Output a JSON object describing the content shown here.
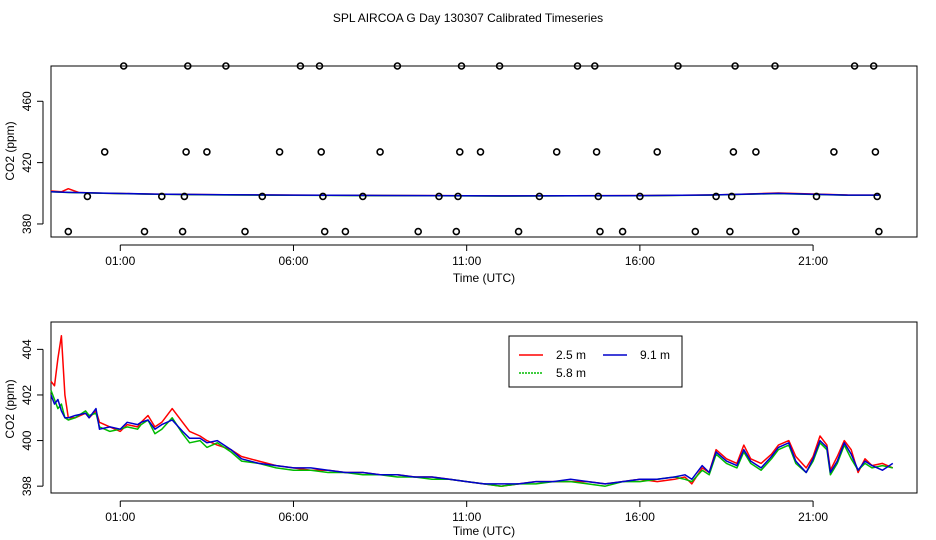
{
  "title": "SPL AIRCOA G  Day 130307  Calibrated Timeseries",
  "chart_data": [
    {
      "type": "scatter",
      "panel": "top",
      "xlabel": "Time (UTC)",
      "ylabel": "CO2 (ppm)",
      "xlim": [
        -1.0,
        24.0
      ],
      "ylim": [
        371.5,
        483.0
      ],
      "xticks": [
        1,
        6,
        11,
        16,
        21
      ],
      "xtick_labels": [
        "01:00",
        "06:00",
        "11:00",
        "16:00",
        "21:00"
      ],
      "yticks": [
        380,
        420,
        460
      ],
      "ytick_labels": [
        "380",
        "420",
        "460"
      ],
      "calibration_points": [
        {
          "x": -0.5,
          "y": 375
        },
        {
          "x": 0.05,
          "y": 398
        },
        {
          "x": 0.55,
          "y": 427
        },
        {
          "x": 1.1,
          "y": 483
        },
        {
          "x": 1.7,
          "y": 375
        },
        {
          "x": 2.2,
          "y": 398
        },
        {
          "x": 2.8,
          "y": 375
        },
        {
          "x": 2.85,
          "y": 398
        },
        {
          "x": 2.9,
          "y": 427
        },
        {
          "x": 2.95,
          "y": 483
        },
        {
          "x": 3.5,
          "y": 427
        },
        {
          "x": 4.05,
          "y": 483
        },
        {
          "x": 4.6,
          "y": 375
        },
        {
          "x": 5.1,
          "y": 398
        },
        {
          "x": 5.6,
          "y": 427
        },
        {
          "x": 6.2,
          "y": 483
        },
        {
          "x": 6.75,
          "y": 483
        },
        {
          "x": 6.8,
          "y": 427
        },
        {
          "x": 6.85,
          "y": 398
        },
        {
          "x": 6.9,
          "y": 375
        },
        {
          "x": 7.5,
          "y": 375
        },
        {
          "x": 8.0,
          "y": 398
        },
        {
          "x": 8.5,
          "y": 427
        },
        {
          "x": 9.0,
          "y": 483
        },
        {
          "x": 9.6,
          "y": 375
        },
        {
          "x": 10.2,
          "y": 398
        },
        {
          "x": 10.7,
          "y": 375
        },
        {
          "x": 10.75,
          "y": 398
        },
        {
          "x": 10.8,
          "y": 427
        },
        {
          "x": 10.85,
          "y": 483
        },
        {
          "x": 11.4,
          "y": 427
        },
        {
          "x": 11.95,
          "y": 483
        },
        {
          "x": 12.5,
          "y": 375
        },
        {
          "x": 13.1,
          "y": 398
        },
        {
          "x": 13.6,
          "y": 427
        },
        {
          "x": 14.2,
          "y": 483
        },
        {
          "x": 14.7,
          "y": 483
        },
        {
          "x": 14.75,
          "y": 427
        },
        {
          "x": 14.8,
          "y": 398
        },
        {
          "x": 14.85,
          "y": 375
        },
        {
          "x": 15.5,
          "y": 375
        },
        {
          "x": 16.0,
          "y": 398
        },
        {
          "x": 16.5,
          "y": 427
        },
        {
          "x": 17.1,
          "y": 483
        },
        {
          "x": 17.6,
          "y": 375
        },
        {
          "x": 18.2,
          "y": 398
        },
        {
          "x": 18.6,
          "y": 375
        },
        {
          "x": 18.65,
          "y": 398
        },
        {
          "x": 18.7,
          "y": 427
        },
        {
          "x": 18.75,
          "y": 483
        },
        {
          "x": 19.35,
          "y": 427
        },
        {
          "x": 19.9,
          "y": 483
        },
        {
          "x": 20.5,
          "y": 375
        },
        {
          "x": 21.1,
          "y": 398
        },
        {
          "x": 21.6,
          "y": 427
        },
        {
          "x": 22.2,
          "y": 483
        },
        {
          "x": 22.75,
          "y": 483
        },
        {
          "x": 22.8,
          "y": 427
        },
        {
          "x": 22.85,
          "y": 398
        },
        {
          "x": 22.9,
          "y": 375
        }
      ],
      "series": [
        {
          "name": "2.5 m",
          "color": "#ff0000",
          "x": [
            -1.0,
            -0.7,
            -0.5,
            -0.2,
            0.5,
            2.0,
            4.0,
            6.0,
            8.0,
            10.0,
            12.0,
            14.0,
            16.0,
            18.0,
            18.7,
            20.0,
            22.0,
            22.9
          ],
          "y": [
            401.5,
            401.0,
            403.0,
            400.5,
            400.0,
            399.5,
            399.0,
            398.8,
            398.6,
            398.5,
            398.3,
            398.4,
            398.5,
            398.9,
            399.2,
            400.2,
            398.9,
            398.8
          ]
        },
        {
          "name": "5.8 m",
          "color": "#00bb00",
          "x": [
            -1.0,
            -0.5,
            0.5,
            2.0,
            4.0,
            6.0,
            8.0,
            10.0,
            12.0,
            14.0,
            16.0,
            18.0,
            20.0,
            22.0,
            22.9
          ],
          "y": [
            401.0,
            400.5,
            400.0,
            399.4,
            398.9,
            398.7,
            398.5,
            398.4,
            398.2,
            398.3,
            398.4,
            398.8,
            399.8,
            398.7,
            398.7
          ]
        },
        {
          "name": "9.1 m",
          "color": "#0000cc",
          "x": [
            -1.0,
            -0.5,
            0.5,
            2.0,
            4.0,
            6.0,
            8.0,
            10.0,
            12.0,
            14.0,
            16.0,
            18.0,
            20.0,
            22.0,
            22.9
          ],
          "y": [
            401.0,
            400.6,
            400.1,
            399.5,
            399.0,
            398.8,
            398.6,
            398.5,
            398.3,
            398.4,
            398.5,
            398.9,
            399.9,
            398.8,
            398.8
          ]
        }
      ]
    },
    {
      "type": "line",
      "panel": "bottom",
      "xlabel": "Time (UTC)",
      "ylabel": "CO2 (ppm)",
      "xlim": [
        -1.0,
        24.0
      ],
      "ylim": [
        397.7,
        405.2
      ],
      "xticks": [
        1,
        6,
        11,
        16,
        21
      ],
      "xtick_labels": [
        "01:00",
        "06:00",
        "11:00",
        "16:00",
        "21:00"
      ],
      "yticks": [
        398,
        400,
        402,
        404
      ],
      "ytick_labels": [
        "398",
        "400",
        "402",
        "404"
      ],
      "legend": {
        "position": "top-right",
        "entries": [
          "2.5 m",
          "9.1 m",
          "5.8 m"
        ]
      },
      "series": [
        {
          "name": "2.5 m",
          "color": "#ff0000",
          "x": [
            -1.0,
            -0.9,
            -0.8,
            -0.7,
            -0.6,
            -0.5,
            -0.3,
            0.0,
            0.1,
            0.3,
            0.4,
            0.7,
            1.0,
            1.2,
            1.5,
            1.6,
            1.8,
            2.0,
            2.2,
            2.5,
            2.8,
            3.0,
            3.3,
            3.5,
            3.8,
            4.2,
            4.5,
            5.0,
            5.5,
            6.0,
            6.5,
            7.0,
            7.5,
            8.0,
            8.5,
            9.0,
            9.5,
            10.0,
            10.5,
            11.0,
            11.5,
            12.0,
            12.5,
            13.0,
            13.5,
            14.0,
            14.5,
            15.0,
            15.5,
            16.0,
            16.5,
            17.0,
            17.3,
            17.5,
            17.8,
            18.0,
            18.2,
            18.5,
            18.8,
            19.0,
            19.2,
            19.5,
            19.8,
            20.0,
            20.3,
            20.5,
            20.8,
            21.0,
            21.2,
            21.4,
            21.5,
            21.7,
            21.9,
            22.1,
            22.3,
            22.5,
            22.7,
            23.0,
            23.3
          ],
          "y": [
            402.6,
            402.4,
            403.6,
            404.6,
            402.0,
            401.0,
            401.0,
            401.2,
            401.0,
            401.3,
            400.8,
            400.6,
            400.4,
            400.7,
            400.6,
            400.8,
            401.1,
            400.6,
            400.8,
            401.4,
            400.8,
            400.4,
            400.2,
            400.0,
            399.8,
            399.6,
            399.3,
            399.1,
            398.9,
            398.8,
            398.7,
            398.7,
            398.6,
            398.6,
            398.5,
            398.5,
            398.4,
            398.4,
            398.3,
            398.2,
            398.1,
            398.0,
            398.1,
            398.2,
            398.2,
            398.2,
            398.2,
            398.1,
            398.2,
            398.3,
            398.2,
            398.3,
            398.4,
            398.1,
            398.8,
            398.6,
            399.6,
            399.2,
            399.0,
            399.8,
            399.2,
            399.0,
            399.4,
            399.8,
            400.0,
            399.3,
            398.8,
            399.3,
            400.2,
            399.8,
            398.7,
            399.3,
            400.0,
            399.6,
            398.6,
            399.2,
            398.9,
            399.0,
            398.8
          ]
        },
        {
          "name": "5.8 m",
          "color": "#00bb00",
          "x": [
            -1.0,
            -0.9,
            -0.8,
            -0.7,
            -0.6,
            -0.5,
            -0.3,
            0.0,
            0.1,
            0.3,
            0.4,
            0.7,
            1.0,
            1.2,
            1.5,
            1.6,
            1.8,
            2.0,
            2.2,
            2.5,
            2.8,
            3.0,
            3.3,
            3.5,
            3.8,
            4.2,
            4.5,
            5.0,
            5.5,
            6.0,
            6.5,
            7.0,
            7.5,
            8.0,
            8.5,
            9.0,
            9.5,
            10.0,
            10.5,
            11.0,
            11.5,
            12.0,
            12.5,
            13.0,
            13.5,
            14.0,
            14.5,
            15.0,
            15.5,
            16.0,
            16.5,
            17.0,
            17.3,
            17.5,
            17.8,
            18.0,
            18.2,
            18.5,
            18.8,
            19.0,
            19.2,
            19.5,
            19.8,
            20.0,
            20.3,
            20.5,
            20.8,
            21.0,
            21.2,
            21.4,
            21.5,
            21.7,
            21.9,
            22.1,
            22.3,
            22.5,
            22.7,
            23.0,
            23.3
          ],
          "y": [
            402.2,
            401.8,
            401.4,
            401.6,
            401.0,
            400.9,
            401.0,
            401.3,
            401.1,
            401.2,
            400.6,
            400.4,
            400.5,
            400.6,
            400.5,
            400.7,
            400.9,
            400.3,
            400.5,
            401.0,
            400.3,
            399.9,
            400.0,
            399.7,
            399.9,
            399.5,
            399.1,
            399.0,
            398.8,
            398.7,
            398.7,
            398.6,
            398.6,
            398.5,
            398.5,
            398.4,
            398.4,
            398.3,
            398.3,
            398.2,
            398.1,
            398.0,
            398.1,
            398.1,
            398.2,
            398.2,
            398.1,
            398.0,
            398.2,
            398.2,
            398.3,
            398.4,
            398.3,
            398.2,
            398.7,
            398.5,
            399.4,
            399.0,
            398.8,
            399.5,
            399.0,
            398.7,
            399.2,
            399.6,
            399.8,
            399.0,
            398.6,
            399.1,
            399.9,
            399.6,
            398.5,
            399.0,
            399.8,
            399.2,
            398.7,
            399.0,
            398.8,
            398.9,
            398.8
          ]
        },
        {
          "name": "9.1 m",
          "color": "#0000cc",
          "x": [
            -1.0,
            -0.9,
            -0.8,
            -0.7,
            -0.6,
            -0.5,
            -0.3,
            0.0,
            0.1,
            0.3,
            0.4,
            0.7,
            1.0,
            1.2,
            1.5,
            1.6,
            1.8,
            2.0,
            2.2,
            2.5,
            2.8,
            3.0,
            3.3,
            3.5,
            3.8,
            4.2,
            4.5,
            5.0,
            5.5,
            6.0,
            6.5,
            7.0,
            7.5,
            8.0,
            8.5,
            9.0,
            9.5,
            10.0,
            10.5,
            11.0,
            11.5,
            12.0,
            12.5,
            13.0,
            13.5,
            14.0,
            14.5,
            15.0,
            15.5,
            16.0,
            16.5,
            17.0,
            17.3,
            17.5,
            17.8,
            18.0,
            18.2,
            18.5,
            18.8,
            19.0,
            19.2,
            19.5,
            19.8,
            20.0,
            20.3,
            20.5,
            20.8,
            21.0,
            21.2,
            21.4,
            21.5,
            21.7,
            21.9,
            22.1,
            22.3,
            22.5,
            22.7,
            23.0,
            23.3
          ],
          "y": [
            402.0,
            401.6,
            401.8,
            401.3,
            401.0,
            401.0,
            401.1,
            401.2,
            401.0,
            401.4,
            400.5,
            400.6,
            400.5,
            400.8,
            400.7,
            400.8,
            400.9,
            400.5,
            400.7,
            400.9,
            400.4,
            400.1,
            400.1,
            399.9,
            400.0,
            399.6,
            399.2,
            399.0,
            398.9,
            398.8,
            398.8,
            398.7,
            398.6,
            398.6,
            398.5,
            398.5,
            398.4,
            398.4,
            398.3,
            398.2,
            398.1,
            398.1,
            398.1,
            398.2,
            398.2,
            398.3,
            398.2,
            398.1,
            398.2,
            398.3,
            398.3,
            398.4,
            398.5,
            398.3,
            398.9,
            398.6,
            399.5,
            399.1,
            398.9,
            399.6,
            399.1,
            398.8,
            399.3,
            399.7,
            399.9,
            399.1,
            398.6,
            399.2,
            400.0,
            399.7,
            398.6,
            399.1,
            399.9,
            399.4,
            398.7,
            399.1,
            398.9,
            398.7,
            399.0
          ]
        }
      ]
    }
  ]
}
